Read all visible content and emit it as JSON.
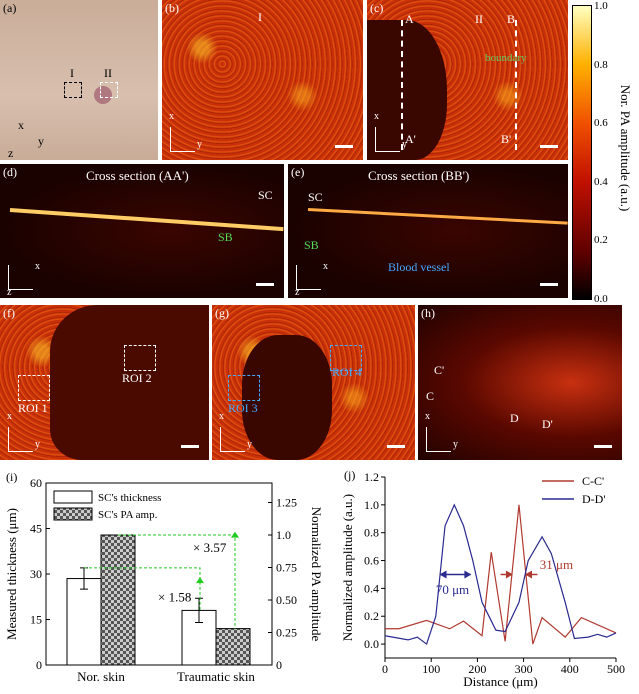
{
  "panels": {
    "a": {
      "label": "(a)",
      "roi1": "I",
      "roi2": "II",
      "axis_x": "x",
      "axis_y": "y",
      "axis_z": "z"
    },
    "b": {
      "label": "(b)",
      "title": "I",
      "axis_x": "x",
      "axis_y": "y"
    },
    "c": {
      "label": "(c)",
      "title": "II",
      "A": "A",
      "A_prime": "A'",
      "B": "B",
      "B_prime": "B'",
      "boundary": "boundary",
      "axis_x": "x",
      "axis_y": "y"
    },
    "d": {
      "label": "(d)",
      "title": "Cross section (AA')",
      "sc": "SC",
      "sb": "SB",
      "axis_x": "x",
      "axis_z": "z"
    },
    "e": {
      "label": "(e)",
      "title": "Cross section (BB')",
      "sc": "SC",
      "sb": "SB",
      "vessel": "Blood vessel",
      "axis_x": "x",
      "axis_z": "z"
    },
    "f": {
      "label": "(f)",
      "roi1": "ROI 1",
      "roi2": "ROI 2",
      "axis_x": "x",
      "axis_y": "y"
    },
    "g": {
      "label": "(g)",
      "roi3": "ROI 3",
      "roi4": "ROI 4",
      "axis_x": "x",
      "axis_y": "y"
    },
    "h": {
      "label": "(h)",
      "c": "C",
      "c_prime": "C'",
      "d": "D",
      "d_prime": "D'",
      "axis_x": "x",
      "axis_y": "y"
    }
  },
  "colorbar": {
    "label": "Nor. PA amplitude (a.u.)",
    "ticks": [
      "1.0",
      "0.8",
      "0.6",
      "0.4",
      "0.2",
      "0.0"
    ]
  },
  "chart_data": [
    {
      "panel": "(i)",
      "type": "bar",
      "categories": [
        "Nor. skin",
        "Traumatic skin"
      ],
      "ylabel": "Measured thickness (μm)",
      "y2label": "Normalized PA amplitude",
      "ylim": [
        0,
        60
      ],
      "y2lim": [
        0,
        1.4
      ],
      "yticks": [
        "0",
        "15",
        "30",
        "45",
        "60"
      ],
      "y2ticks": [
        "0",
        "0.25",
        "0.50",
        "0.75",
        "1.0",
        "1.25"
      ],
      "legend_position": "top-left",
      "series": [
        {
          "name": "SC's thickness",
          "axis": "left",
          "values": [
            28.5,
            18
          ],
          "errors": [
            3.5,
            4
          ],
          "color": "#ffffff"
        },
        {
          "name": "SC's PA amp.",
          "axis": "right",
          "values": [
            1.0,
            0.28
          ],
          "color": "#888888"
        }
      ],
      "annotations": [
        "× 1.58",
        "× 3.57"
      ]
    },
    {
      "panel": "(j)",
      "type": "line",
      "xlabel": "Distance (μm)",
      "ylabel": "Normalized amplitude (a.u.)",
      "xlim": [
        0,
        500
      ],
      "ylim": [
        -0.1,
        1.2
      ],
      "xticks": [
        "0",
        "100",
        "200",
        "300",
        "400",
        "500"
      ],
      "yticks": [
        "0.0",
        "0.2",
        "0.4",
        "0.6",
        "0.8",
        "1.0",
        "1.2"
      ],
      "legend_position": "top-right",
      "series": [
        {
          "name": "C-C'",
          "color": "#b03a30",
          "x": [
            0,
            30,
            90,
            140,
            170,
            210,
            230,
            260,
            290,
            320,
            340,
            390,
            425,
            500
          ],
          "y": [
            0.11,
            0.11,
            0.17,
            0.11,
            0.165,
            0.06,
            0.66,
            0.02,
            1.0,
            0.0,
            0.19,
            0.05,
            0.19,
            0.08
          ]
        },
        {
          "name": "D-D'",
          "color": "#2a2a90",
          "x": [
            0,
            50,
            70,
            90,
            110,
            130,
            150,
            170,
            190,
            210,
            240,
            260,
            290,
            310,
            340,
            360,
            390,
            410,
            440,
            460,
            480,
            500
          ],
          "y": [
            0.06,
            0.03,
            0.05,
            0.0,
            0.2,
            0.85,
            1.0,
            0.85,
            0.6,
            0.3,
            0.1,
            0.09,
            0.3,
            0.6,
            0.77,
            0.65,
            0.3,
            0.04,
            0.05,
            0.07,
            0.05,
            0.08
          ]
        }
      ],
      "annotations": [
        "70 μm",
        "31 μm"
      ]
    }
  ]
}
